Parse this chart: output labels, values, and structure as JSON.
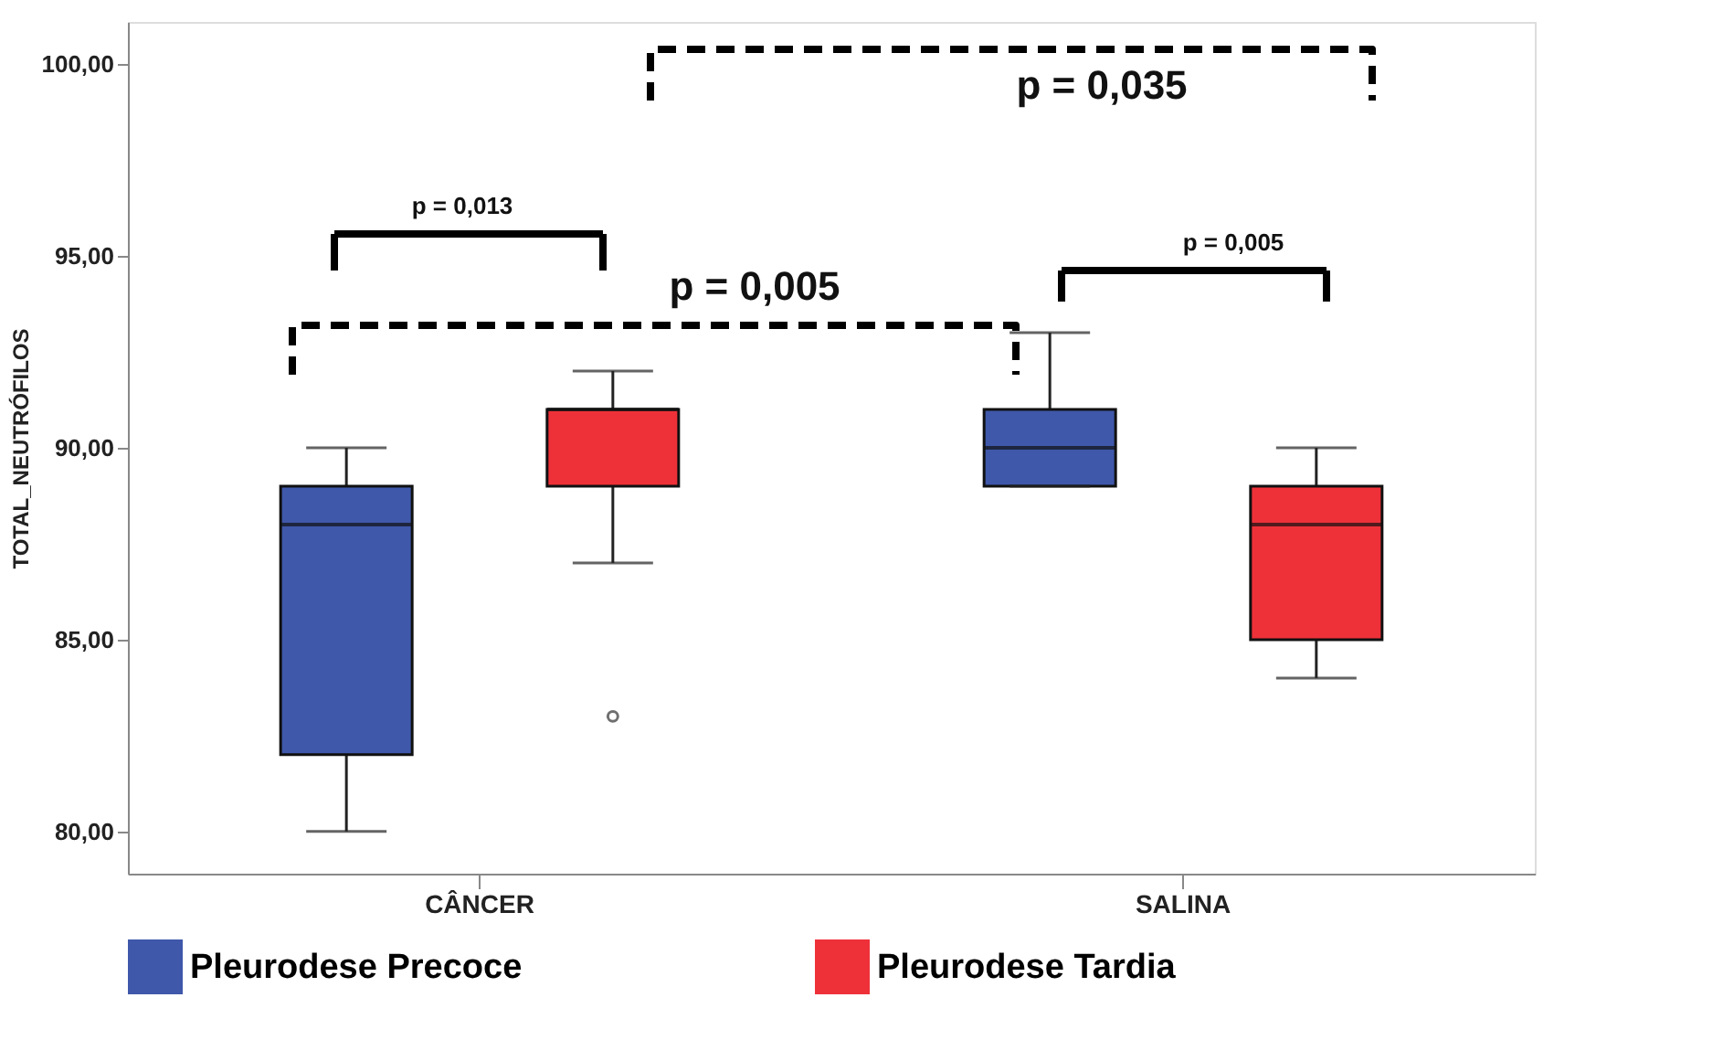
{
  "chart_data": {
    "type": "box",
    "ylabel": "TOTAL_NEUTRÓFILOS",
    "categories": [
      "CÂNCER",
      "SALINA"
    ],
    "series": [
      {
        "name": "Pleurodese Precoce",
        "color": "#3f58aa",
        "boxes": [
          {
            "low": 80,
            "q1": 82,
            "median": 88,
            "q3": 89,
            "high": 90
          },
          {
            "low": 89,
            "q1": 89,
            "median": 90,
            "q3": 91,
            "high": 93
          }
        ]
      },
      {
        "name": "Pleurodese Tardia",
        "color": "#ee3139",
        "boxes": [
          {
            "low": 87,
            "q1": 89,
            "median": 91,
            "q3": 91,
            "high": 92,
            "outliers": [
              83
            ]
          },
          {
            "low": 84,
            "q1": 85,
            "median": 88,
            "q3": 89,
            "high": 90
          }
        ]
      }
    ],
    "ylim": [
      78.9,
      101.1
    ],
    "yticks": [
      {
        "value": 80,
        "label": "80,00"
      },
      {
        "value": 85,
        "label": "85,00"
      },
      {
        "value": 90,
        "label": "90,00"
      },
      {
        "value": 95,
        "label": "95,00"
      },
      {
        "value": 100,
        "label": "100,00"
      }
    ],
    "grid": false,
    "legend": "bottom",
    "annotations": [
      "p = 0,013",
      "p = 0,005",
      "p = 0,005",
      "p = 0,035"
    ]
  }
}
